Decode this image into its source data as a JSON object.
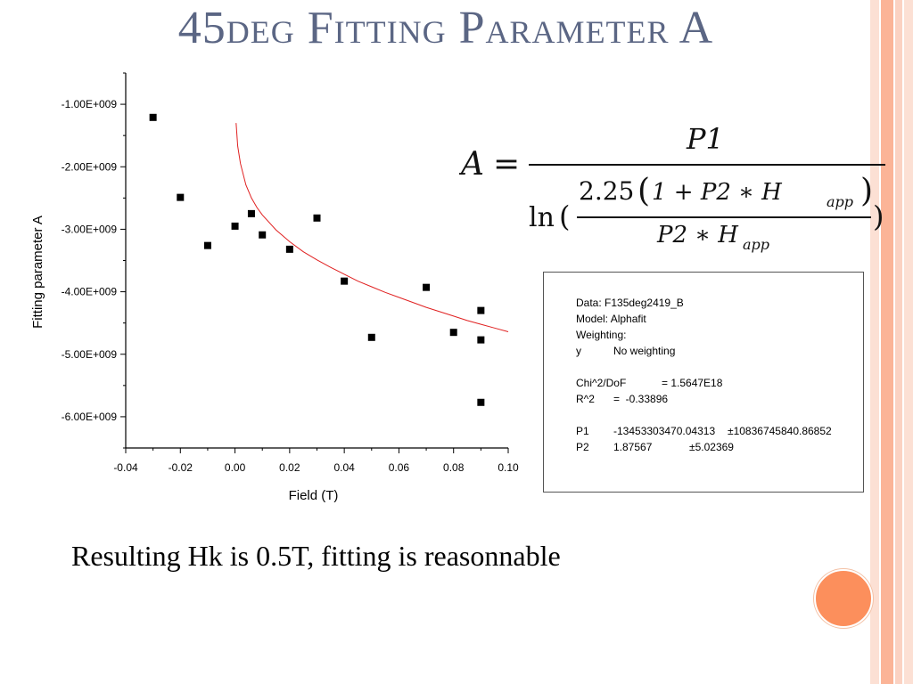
{
  "slide": {
    "title": "45deg Fitting Parameter A",
    "caption": "Resulting Hk is 0.5T, fitting is reasonnable",
    "colors": {
      "title": "#5b6684",
      "accent_circle": "#fc8f5c",
      "stripes": [
        "#fbd2c2",
        "#fbb497",
        "#fce0d4"
      ]
    }
  },
  "chart_data": {
    "type": "scatter",
    "xlabel": "Field (T)",
    "ylabel": "Fitting parameter A",
    "xlim": [
      -0.04,
      0.1
    ],
    "ylim": [
      -6500000000.0,
      -500000000.0
    ],
    "xticks": [
      "-0.04",
      "-0.02",
      "0.00",
      "0.02",
      "0.04",
      "0.06",
      "0.08",
      "0.10"
    ],
    "xtick_values": [
      -0.04,
      -0.02,
      0.0,
      0.02,
      0.04,
      0.06,
      0.08,
      0.1
    ],
    "yticks": [
      "-1.00E+009",
      "-2.00E+009",
      "-3.00E+009",
      "-4.00E+009",
      "-5.00E+009",
      "-6.00E+009"
    ],
    "ytick_values": [
      -1000000000.0,
      -2000000000.0,
      -3000000000.0,
      -4000000000.0,
      -5000000000.0,
      -6000000000.0
    ],
    "series": [
      {
        "marker": "square",
        "color": "#000000",
        "x": [
          -0.03,
          -0.02,
          -0.01,
          0.0,
          0.006,
          0.01,
          0.02,
          0.03,
          0.04,
          0.05,
          0.07,
          0.08,
          0.09,
          0.09,
          0.09
        ],
        "y": [
          -1210000000.0,
          -2490000000.0,
          -3260000000.0,
          -2950000000.0,
          -2750000000.0,
          -3090000000.0,
          -3320000000.0,
          -2820000000.0,
          -3830000000.0,
          -4730000000.0,
          -3930000000.0,
          -4650000000.0,
          -4300000000.0,
          -4770000000.0,
          -5770000000.0
        ]
      },
      {
        "marker": "none",
        "color": "#e02020",
        "line": "fit",
        "x": [
          0.0004,
          0.001,
          0.002,
          0.004,
          0.006,
          0.008,
          0.01,
          0.015,
          0.02,
          0.025,
          0.03,
          0.035,
          0.04,
          0.045,
          0.05,
          0.055,
          0.06,
          0.065,
          0.07,
          0.075,
          0.08,
          0.085,
          0.09,
          0.095,
          0.1
        ],
        "y": [
          -1300000000.0,
          -1670000000.0,
          -1950000000.0,
          -2290000000.0,
          -2500000000.0,
          -2650000000.0,
          -2770000000.0,
          -3010000000.0,
          -3200000000.0,
          -3360000000.0,
          -3490000000.0,
          -3610000000.0,
          -3720000000.0,
          -3830000000.0,
          -3920000000.0,
          -4010000000.0,
          -4090000000.0,
          -4170000000.0,
          -4250000000.0,
          -4320000000.0,
          -4390000000.0,
          -4460000000.0,
          -4520000000.0,
          -4580000000.0,
          -4640000000.0
        ]
      }
    ]
  },
  "formula": {
    "lhs": "A",
    "equals": "=",
    "numerator": "P1",
    "ln": "ln",
    "inner_open": "(",
    "inner_close": ")",
    "coef": "2.25",
    "inner_num": "1 + P2 ∗ H",
    "inner_den": "P2 ∗ H",
    "subscript": "app"
  },
  "fit_box": {
    "data_line": "Data: F135deg2419_B",
    "model_line": "Model: Alphafit",
    "weighting_line": "Weighting:",
    "weight_key": "y",
    "weight_val": "No weighting",
    "chi_key": "Chi^2/DoF",
    "chi_val": "= 1.5647E18",
    "r2_key": "R^2",
    "r2_val": "=  -0.33896",
    "p1_key": "P1",
    "p1_val": "-13453303470.04313",
    "p1_err": "±10836745840.86852",
    "p2_key": "P2",
    "p2_val": "1.87567",
    "p2_err": "±5.02369"
  }
}
